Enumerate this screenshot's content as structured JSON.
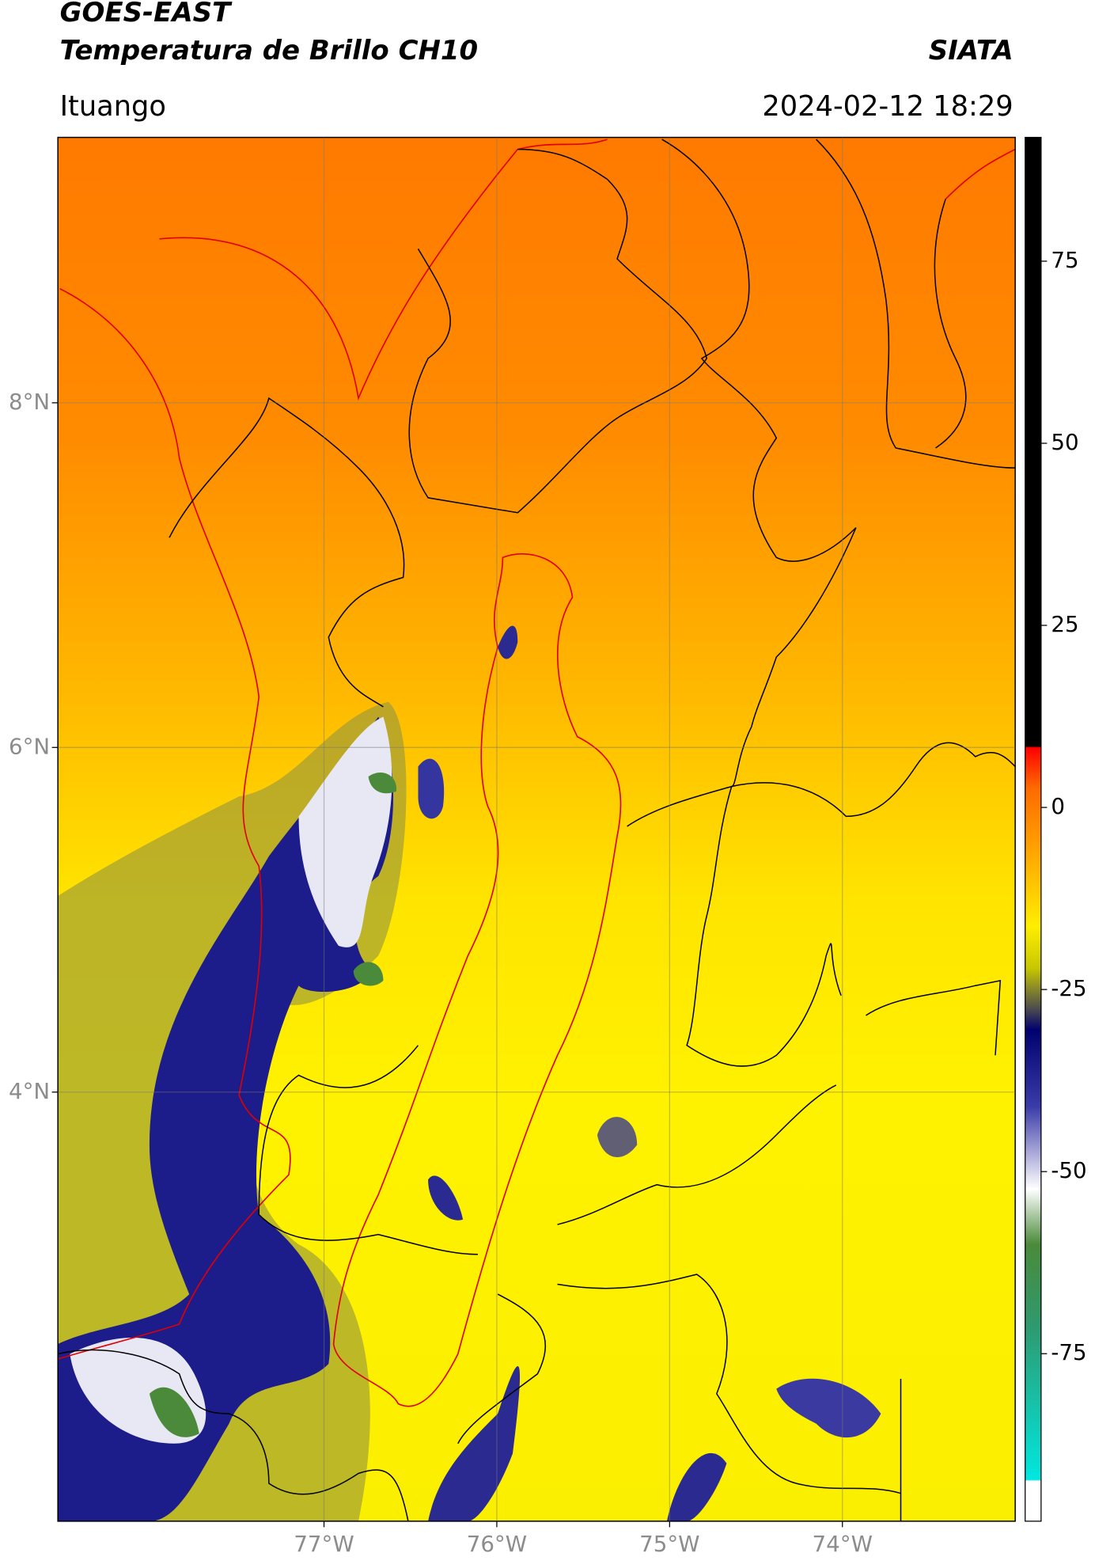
{
  "chart_data": {
    "type": "map",
    "title": "GOES-EAST",
    "subtitle": "Temperatura de Brillo CH10",
    "source": "SIATA",
    "location": "Ituango",
    "date": "2024-02-12 18:29",
    "xlim": [
      -78.54,
      -73.0
    ],
    "ylim": [
      1.51,
      9.54
    ],
    "xticks": [
      {
        "value": -77,
        "label": "77°W"
      },
      {
        "value": -76,
        "label": "76°W"
      },
      {
        "value": -75,
        "label": "75°W"
      },
      {
        "value": -74,
        "label": "74°W"
      }
    ],
    "yticks": [
      {
        "value": 8,
        "label": "8°N"
      },
      {
        "value": 6,
        "label": "6°N"
      },
      {
        "value": 4,
        "label": "4°N"
      }
    ],
    "grid": true,
    "colorbar": {
      "lim": [
        -98,
        92
      ],
      "ticks": [
        75,
        50,
        25,
        0,
        -25,
        -50,
        -75
      ]
    }
  }
}
